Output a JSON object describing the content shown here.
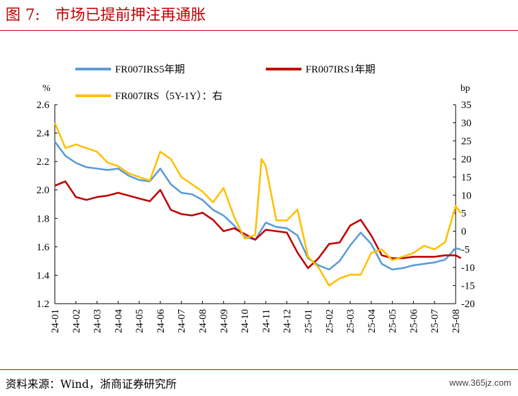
{
  "figure": {
    "number": "图 7:",
    "title": "市场已提前押注再通胀",
    "source": "资料来源：Wind，浙商证券研究所",
    "watermark": "www.365jz.com"
  },
  "colors": {
    "accent": "#c00000",
    "s5y": "#5b9bd5",
    "s1y": "#c00000",
    "spread": "#ffc000"
  },
  "chart_data": {
    "type": "line",
    "ylabel_left": "%",
    "ylabel_right": "bp",
    "ylim_left": [
      1.2,
      2.6
    ],
    "ylim_right": [
      -20,
      35
    ],
    "yticks_left": [
      "1.2",
      "1.4",
      "1.6",
      "1.8",
      "2.0",
      "2.2",
      "2.4",
      "2.6"
    ],
    "yticks_right": [
      "-20",
      "-15",
      "-10",
      "-5",
      "0",
      "5",
      "10",
      "15",
      "20",
      "25",
      "30",
      "35"
    ],
    "categories": [
      "24-01",
      "24-02",
      "24-03",
      "24-04",
      "24-05",
      "24-06",
      "24-07",
      "24-08",
      "24-09",
      "24-10",
      "24-11",
      "24-12",
      "25-01",
      "25-02",
      "25-03",
      "25-04",
      "25-05",
      "25-06",
      "25-07",
      "25-08"
    ],
    "grid": false,
    "legend": "top",
    "series": [
      {
        "name": "FR007IRS5年期",
        "axis": "left",
        "color": "#5b9bd5",
        "x": [
          0,
          0.5,
          1,
          1.5,
          2,
          2.5,
          3,
          3.5,
          4,
          4.5,
          5,
          5.5,
          6,
          6.5,
          7,
          7.5,
          8,
          8.5,
          9,
          9.5,
          10,
          10.5,
          11,
          11.5,
          12,
          12.5,
          13,
          13.5,
          14,
          14.5,
          15,
          15.5,
          16,
          16.5,
          17,
          17.5,
          18,
          18.5,
          19,
          19.25
        ],
        "y": [
          2.34,
          2.24,
          2.19,
          2.16,
          2.15,
          2.14,
          2.15,
          2.1,
          2.07,
          2.06,
          2.15,
          2.04,
          1.98,
          1.97,
          1.93,
          1.86,
          1.82,
          1.75,
          1.67,
          1.65,
          1.77,
          1.74,
          1.73,
          1.68,
          1.52,
          1.47,
          1.44,
          1.5,
          1.61,
          1.7,
          1.62,
          1.48,
          1.44,
          1.45,
          1.47,
          1.48,
          1.49,
          1.51,
          1.59,
          1.58
        ]
      },
      {
        "name": "FR007IRS1年期",
        "axis": "left",
        "color": "#c00000",
        "x": [
          0,
          0.5,
          1,
          1.5,
          2,
          2.5,
          3,
          3.5,
          4,
          4.5,
          5,
          5.5,
          6,
          6.5,
          7,
          7.5,
          8,
          8.5,
          9,
          9.5,
          10,
          10.5,
          11,
          11.5,
          12,
          12.5,
          13,
          13.5,
          14,
          14.5,
          15,
          15.5,
          16,
          16.5,
          17,
          17.5,
          18,
          18.5,
          19,
          19.25
        ],
        "y": [
          2.03,
          2.06,
          1.95,
          1.93,
          1.95,
          1.96,
          1.98,
          1.96,
          1.94,
          1.92,
          2.0,
          1.86,
          1.83,
          1.82,
          1.84,
          1.79,
          1.71,
          1.73,
          1.69,
          1.65,
          1.72,
          1.71,
          1.7,
          1.56,
          1.45,
          1.52,
          1.62,
          1.63,
          1.75,
          1.79,
          1.68,
          1.54,
          1.52,
          1.52,
          1.53,
          1.53,
          1.53,
          1.54,
          1.54,
          1.52
        ]
      },
      {
        "name": "FR007IRS（5Y-1Y）：右",
        "axis": "right",
        "color": "#ffc000",
        "x": [
          0,
          0.5,
          1,
          1.5,
          2,
          2.5,
          3,
          3.5,
          4,
          4.5,
          5,
          5.5,
          6,
          6.5,
          7,
          7.5,
          8,
          8.5,
          9,
          9.5,
          9.8,
          10,
          10.5,
          11,
          11.5,
          12,
          12.5,
          13,
          13.5,
          14,
          14.5,
          15,
          15.5,
          16,
          16.5,
          17,
          17.5,
          18,
          18.5,
          19,
          19.25
        ],
        "y": [
          30,
          23,
          24,
          23,
          22,
          19,
          18,
          16,
          15,
          14,
          22,
          20,
          15,
          13,
          11,
          8,
          12,
          4,
          -2,
          -1,
          20,
          18,
          3,
          3,
          6,
          -7,
          -10,
          -15,
          -13,
          -12,
          -12,
          -6,
          -5,
          -8,
          -7,
          -6,
          -4,
          -5,
          -3,
          7,
          5
        ]
      }
    ]
  }
}
